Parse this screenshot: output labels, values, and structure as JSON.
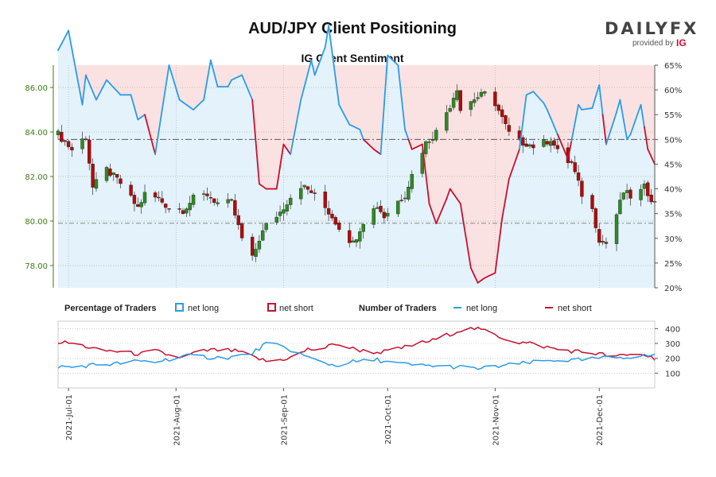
{
  "header": {
    "title": "AUD/JPY Client Positioning",
    "subtitle": "IG Client Sentiment",
    "logo": {
      "text": "DAILYFX",
      "provided_by": "provided by",
      "brand": "IG"
    }
  },
  "colors": {
    "bull_candle": "#2e8b21",
    "bear_candle": "#b40a0a",
    "net_long": "#2b9be8",
    "net_short": "#c8102e",
    "long_fill": "#e4f2fb",
    "short_fill": "#fbe2e2",
    "price_axis": "#3d7a16"
  },
  "legend": {
    "pct_label": "Percentage of Traders",
    "pct_long": "net long",
    "pct_short": "net short",
    "num_label": "Number of Traders",
    "num_long": "net long",
    "num_short": "net short"
  },
  "chart_data": {
    "type": "candlestick",
    "instrument": "AUD/JPY",
    "date_range": [
      "2021-06-28",
      "2021-12-17"
    ],
    "x_ticks": [
      "2021-Jul-01",
      "2021-Aug-01",
      "2021-Sep-01",
      "2021-Oct-01",
      "2021-Nov-01",
      "2021-Dec-01"
    ],
    "price_axis": {
      "range": [
        77.0,
        87.0
      ],
      "ticks": [
        "78.00",
        "80.00",
        "82.00",
        "84.00",
        "86.00"
      ]
    },
    "percent_axis": {
      "range": [
        20,
        65
      ],
      "ticks": [
        "20%",
        "25%",
        "30%",
        "35%",
        "40%",
        "45%",
        "50%",
        "55%",
        "60%",
        "65%"
      ]
    },
    "count_axis": {
      "range": [
        0,
        450
      ],
      "ticks": [
        "100",
        "200",
        "300",
        "400"
      ]
    },
    "reference_lines": {
      "percent_50": 50,
      "price_level": 79.9
    },
    "net_long_pct_keypoints": [
      [
        "2021-06-28",
        68
      ],
      [
        "2021-07-01",
        72
      ],
      [
        "2021-07-05",
        57
      ],
      [
        "2021-07-06",
        63
      ],
      [
        "2021-07-09",
        58
      ],
      [
        "2021-07-12",
        62
      ],
      [
        "2021-07-16",
        59
      ],
      [
        "2021-07-19",
        59
      ],
      [
        "2021-07-21",
        54
      ],
      [
        "2021-07-23",
        55
      ],
      [
        "2021-07-24",
        53
      ],
      [
        "2021-07-26",
        47
      ],
      [
        "2021-07-30",
        65
      ],
      [
        "2021-08-02",
        58
      ],
      [
        "2021-08-06",
        56
      ],
      [
        "2021-08-09",
        58
      ],
      [
        "2021-08-11",
        66
      ],
      [
        "2021-08-14",
        58
      ],
      [
        "2021-08-17",
        62
      ],
      [
        "2021-08-20",
        63
      ],
      [
        "2021-08-23",
        58
      ],
      [
        "2021-08-25",
        41
      ],
      [
        "2021-08-27",
        40
      ],
      [
        "2021-08-30",
        40
      ],
      [
        "2021-09-01",
        49
      ],
      [
        "2021-09-03",
        47
      ],
      [
        "2021-09-06",
        58
      ],
      [
        "2021-09-09",
        66
      ],
      [
        "2021-09-11",
        60
      ],
      [
        "2021-09-14",
        73
      ],
      [
        "2021-09-17",
        57
      ],
      [
        "2021-09-20",
        53
      ],
      [
        "2021-09-23",
        52
      ],
      [
        "2021-09-24",
        50
      ],
      [
        "2021-09-27",
        48
      ],
      [
        "2021-09-29",
        47
      ],
      [
        "2021-10-01",
        67
      ],
      [
        "2021-10-04",
        65
      ],
      [
        "2021-10-06",
        52
      ],
      [
        "2021-10-08",
        48
      ],
      [
        "2021-10-11",
        49
      ],
      [
        "2021-10-13",
        37
      ],
      [
        "2021-10-15",
        33
      ],
      [
        "2021-10-17",
        36
      ],
      [
        "2021-10-19",
        40
      ],
      [
        "2021-10-21",
        38
      ],
      [
        "2021-10-22",
        37
      ],
      [
        "2021-10-25",
        24
      ],
      [
        "2021-10-27",
        21
      ],
      [
        "2021-10-29",
        22
      ],
      [
        "2021-11-01",
        23
      ],
      [
        "2021-11-03",
        34
      ],
      [
        "2021-11-05",
        42
      ],
      [
        "2021-11-08",
        48
      ],
      [
        "2021-11-10",
        59
      ],
      [
        "2021-11-13",
        60
      ],
      [
        "2021-11-16",
        56
      ],
      [
        "2021-11-19",
        51
      ],
      [
        "2021-11-22",
        46
      ],
      [
        "2021-11-25",
        57
      ],
      [
        "2021-11-28",
        54
      ],
      [
        "2021-12-01",
        61
      ],
      [
        "2021-12-03",
        49
      ],
      [
        "2021-12-05",
        53
      ],
      [
        "2021-12-07",
        58
      ],
      [
        "2021-12-09",
        50
      ],
      [
        "2021-12-11",
        52
      ],
      [
        "2021-12-13",
        57
      ],
      [
        "2021-12-15",
        48
      ],
      [
        "2021-12-17",
        45
      ]
    ],
    "net_long_count_keypoints": [
      [
        "2021-06-28",
        145
      ],
      [
        "2021-07-02",
        140
      ],
      [
        "2021-07-06",
        150
      ],
      [
        "2021-07-10",
        160
      ],
      [
        "2021-07-14",
        160
      ],
      [
        "2021-07-18",
        175
      ],
      [
        "2021-07-22",
        180
      ],
      [
        "2021-07-26",
        175
      ],
      [
        "2021-07-30",
        195
      ],
      [
        "2021-08-03",
        215
      ],
      [
        "2021-08-07",
        215
      ],
      [
        "2021-08-11",
        205
      ],
      [
        "2021-08-15",
        205
      ],
      [
        "2021-08-19",
        215
      ],
      [
        "2021-08-23",
        235
      ],
      [
        "2021-08-27",
        300
      ],
      [
        "2021-08-31",
        280
      ],
      [
        "2021-09-04",
        250
      ],
      [
        "2021-09-08",
        205
      ],
      [
        "2021-09-12",
        175
      ],
      [
        "2021-09-16",
        150
      ],
      [
        "2021-09-20",
        175
      ],
      [
        "2021-09-24",
        180
      ],
      [
        "2021-09-28",
        190
      ],
      [
        "2021-10-02",
        170
      ],
      [
        "2021-10-06",
        160
      ],
      [
        "2021-10-10",
        150
      ],
      [
        "2021-10-14",
        150
      ],
      [
        "2021-10-18",
        145
      ],
      [
        "2021-10-22",
        140
      ],
      [
        "2021-10-26",
        130
      ],
      [
        "2021-10-30",
        135
      ],
      [
        "2021-11-03",
        150
      ],
      [
        "2021-11-07",
        160
      ],
      [
        "2021-11-11",
        170
      ],
      [
        "2021-11-15",
        180
      ],
      [
        "2021-11-19",
        190
      ],
      [
        "2021-11-23",
        185
      ],
      [
        "2021-11-27",
        190
      ],
      [
        "2021-12-01",
        200
      ],
      [
        "2021-12-05",
        205
      ],
      [
        "2021-12-09",
        210
      ],
      [
        "2021-12-13",
        215
      ],
      [
        "2021-12-17",
        220
      ]
    ],
    "net_short_count_keypoints": [
      [
        "2021-06-28",
        310
      ],
      [
        "2021-07-02",
        300
      ],
      [
        "2021-07-06",
        280
      ],
      [
        "2021-07-10",
        250
      ],
      [
        "2021-07-14",
        250
      ],
      [
        "2021-07-18",
        235
      ],
      [
        "2021-07-22",
        230
      ],
      [
        "2021-07-26",
        250
      ],
      [
        "2021-07-30",
        220
      ],
      [
        "2021-08-03",
        205
      ],
      [
        "2021-08-07",
        240
      ],
      [
        "2021-08-11",
        255
      ],
      [
        "2021-08-15",
        255
      ],
      [
        "2021-08-19",
        245
      ],
      [
        "2021-08-23",
        210
      ],
      [
        "2021-08-27",
        180
      ],
      [
        "2021-08-31",
        190
      ],
      [
        "2021-09-04",
        210
      ],
      [
        "2021-09-08",
        260
      ],
      [
        "2021-09-12",
        260
      ],
      [
        "2021-09-16",
        300
      ],
      [
        "2021-09-20",
        270
      ],
      [
        "2021-09-24",
        250
      ],
      [
        "2021-09-28",
        240
      ],
      [
        "2021-10-02",
        250
      ],
      [
        "2021-10-06",
        275
      ],
      [
        "2021-10-10",
        300
      ],
      [
        "2021-10-14",
        320
      ],
      [
        "2021-10-18",
        355
      ],
      [
        "2021-10-22",
        390
      ],
      [
        "2021-10-26",
        400
      ],
      [
        "2021-10-30",
        380
      ],
      [
        "2021-11-03",
        340
      ],
      [
        "2021-11-07",
        310
      ],
      [
        "2021-11-11",
        300
      ],
      [
        "2021-11-15",
        280
      ],
      [
        "2021-11-19",
        260
      ],
      [
        "2021-11-23",
        250
      ],
      [
        "2021-11-27",
        240
      ],
      [
        "2021-12-01",
        230
      ],
      [
        "2021-12-05",
        210
      ],
      [
        "2021-12-09",
        220
      ],
      [
        "2021-12-13",
        230
      ],
      [
        "2021-12-17",
        200
      ]
    ],
    "price_keypoints": [
      [
        "2021-06-28",
        83.9
      ],
      [
        "2021-07-02",
        83.2
      ],
      [
        "2021-07-06",
        83.8
      ],
      [
        "2021-07-08",
        81.5
      ],
      [
        "2021-07-12",
        82.3
      ],
      [
        "2021-07-16",
        81.7
      ],
      [
        "2021-07-19",
        81.0
      ],
      [
        "2021-07-21",
        80.6
      ],
      [
        "2021-07-23",
        81.2
      ],
      [
        "2021-07-27",
        81.0
      ],
      [
        "2021-07-30",
        80.6
      ],
      [
        "2021-08-03",
        80.5
      ],
      [
        "2021-08-06",
        81.0
      ],
      [
        "2021-08-10",
        81.2
      ],
      [
        "2021-08-13",
        80.8
      ],
      [
        "2021-08-17",
        80.8
      ],
      [
        "2021-08-20",
        79.2
      ],
      [
        "2021-08-23",
        78.3
      ],
      [
        "2021-08-25",
        79.2
      ],
      [
        "2021-08-27",
        79.8
      ],
      [
        "2021-08-31",
        80.4
      ],
      [
        "2021-09-03",
        81.1
      ],
      [
        "2021-09-06",
        81.6
      ],
      [
        "2021-09-09",
        81.3
      ],
      [
        "2021-09-13",
        80.6
      ],
      [
        "2021-09-15",
        80.2
      ],
      [
        "2021-09-18",
        79.5
      ],
      [
        "2021-09-21",
        79.0
      ],
      [
        "2021-09-24",
        80.0
      ],
      [
        "2021-09-28",
        80.7
      ],
      [
        "2021-09-30",
        80.2
      ],
      [
        "2021-10-02",
        80.6
      ],
      [
        "2021-10-06",
        81.2
      ],
      [
        "2021-10-09",
        82.5
      ],
      [
        "2021-10-12",
        83.5
      ],
      [
        "2021-10-15",
        84.0
      ],
      [
        "2021-10-19",
        85.2
      ],
      [
        "2021-10-21",
        86.0
      ],
      [
        "2021-10-22",
        85.0
      ],
      [
        "2021-10-26",
        85.5
      ],
      [
        "2021-10-29",
        85.7
      ],
      [
        "2021-11-01",
        85.3
      ],
      [
        "2021-11-03",
        84.6
      ],
      [
        "2021-11-06",
        83.6
      ],
      [
        "2021-11-10",
        83.5
      ],
      [
        "2021-11-13",
        83.3
      ],
      [
        "2021-11-17",
        83.7
      ],
      [
        "2021-11-20",
        82.8
      ],
      [
        "2021-11-23",
        82.6
      ],
      [
        "2021-11-26",
        81.2
      ],
      [
        "2021-11-29",
        80.5
      ],
      [
        "2021-12-01",
        79.2
      ],
      [
        "2021-12-03",
        79.0
      ],
      [
        "2021-12-06",
        80.3
      ],
      [
        "2021-12-08",
        81.3
      ],
      [
        "2021-12-11",
        81.0
      ],
      [
        "2021-12-14",
        81.5
      ],
      [
        "2021-12-17",
        80.8
      ]
    ]
  }
}
